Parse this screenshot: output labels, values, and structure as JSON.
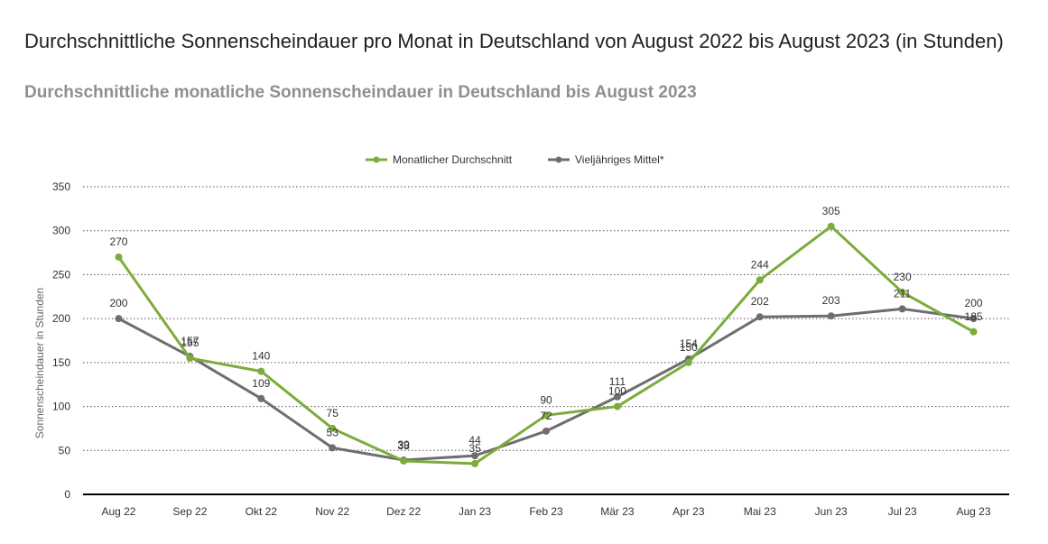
{
  "page": {
    "title": "Durchschnittliche Sonnenscheindauer pro Monat in Deutschland von August 2022 bis August 2023 (in Stunden)",
    "subtitle": "Durchschnittliche monatliche Sonnenscheindauer in Deutschland bis August 2023"
  },
  "colors": {
    "green": "#7cac3b",
    "grey": "#6e6e6e",
    "axis": "#000000",
    "grid": "#555555"
  },
  "chart_data": {
    "type": "line",
    "title": "Durchschnittliche Sonnenscheindauer pro Monat in Deutschland von August 2022 bis August 2023 (in Stunden)",
    "subtitle": "Durchschnittliche monatliche Sonnenscheindauer in Deutschland bis August 2023",
    "xlabel": "",
    "ylabel": "Sonnenscheindauer in Stunden",
    "ylim": [
      0,
      350
    ],
    "yticks": [
      0,
      50,
      100,
      150,
      200,
      250,
      300,
      350
    ],
    "grid": true,
    "legend_position": "top-center",
    "categories": [
      "Aug 22",
      "Sep 22",
      "Okt 22",
      "Nov 22",
      "Dez 22",
      "Jan 23",
      "Feb 23",
      "Mär 23",
      "Apr 23",
      "Mai 23",
      "Jun 23",
      "Jul 23",
      "Aug 23"
    ],
    "series": [
      {
        "name": "Monatlicher Durchschnitt",
        "color": "#7cac3b",
        "values": [
          270,
          155,
          140,
          75,
          38,
          35,
          90,
          100,
          150,
          244,
          305,
          230,
          185
        ]
      },
      {
        "name": "Vieljähriges Mittel*",
        "color": "#6e6e6e",
        "values": [
          200,
          157,
          109,
          53,
          39,
          44,
          72,
          111,
          154,
          202,
          203,
          211,
          200
        ]
      }
    ]
  }
}
